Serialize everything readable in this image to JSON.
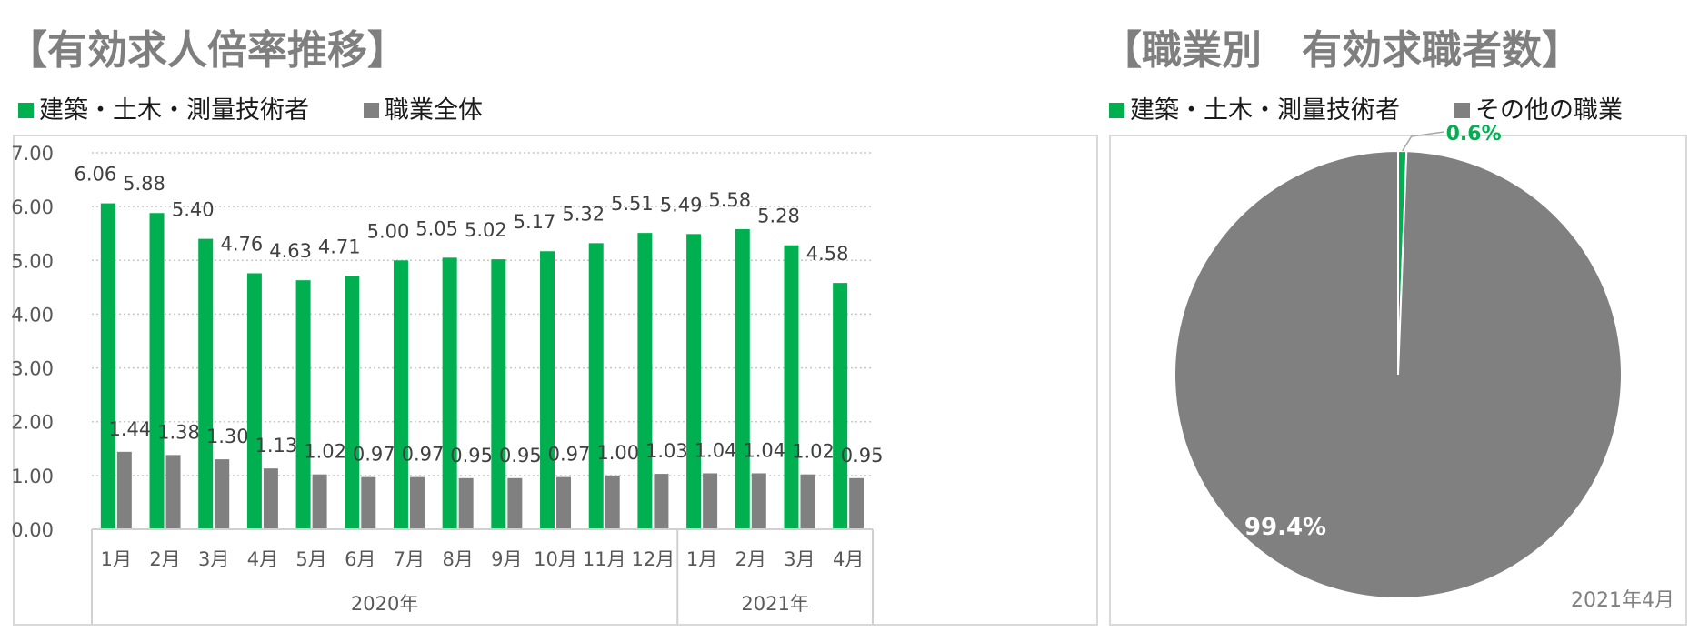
{
  "left_title": "【有効求人倍率推移】",
  "right_title": "【職業別　有効求職者数】",
  "colors": {
    "green": "#00b050",
    "gray": "#808080"
  },
  "chart_data": [
    {
      "type": "bar",
      "categories": [
        "1月",
        "2月",
        "3月",
        "4月",
        "5月",
        "6月",
        "7月",
        "8月",
        "9月",
        "10月",
        "11月",
        "12月",
        "1月",
        "2月",
        "3月",
        "4月"
      ],
      "groups": [
        {
          "label": "2020年",
          "count": 12
        },
        {
          "label": "2021年",
          "count": 4
        }
      ],
      "series": [
        {
          "name": "建築・土木・測量技術者",
          "color": "#00b050",
          "values": [
            6.06,
            5.88,
            5.4,
            4.76,
            4.63,
            4.71,
            5.0,
            5.05,
            5.02,
            5.17,
            5.32,
            5.51,
            5.49,
            5.58,
            5.28,
            4.58
          ]
        },
        {
          "name": "職業全体",
          "color": "#808080",
          "values": [
            1.44,
            1.38,
            1.3,
            1.13,
            1.02,
            0.97,
            0.97,
            0.95,
            0.95,
            0.97,
            1.0,
            1.03,
            1.04,
            1.04,
            1.02,
            0.95
          ]
        }
      ],
      "yticks": [
        "0.00",
        "1.00",
        "2.00",
        "3.00",
        "4.00",
        "5.00",
        "6.00",
        "7.00"
      ],
      "ylim": [
        0,
        7
      ],
      "grid": true,
      "legend": "top-left"
    },
    {
      "type": "pie",
      "slices": [
        {
          "name": "建築・土木・測量技術者",
          "value": 0.6,
          "label": "0.6%",
          "color": "#00b050"
        },
        {
          "name": "その他の職業",
          "value": 99.4,
          "label": "99.4%",
          "color": "#808080"
        }
      ],
      "note": "2021年4月",
      "legend": "top-left"
    }
  ]
}
